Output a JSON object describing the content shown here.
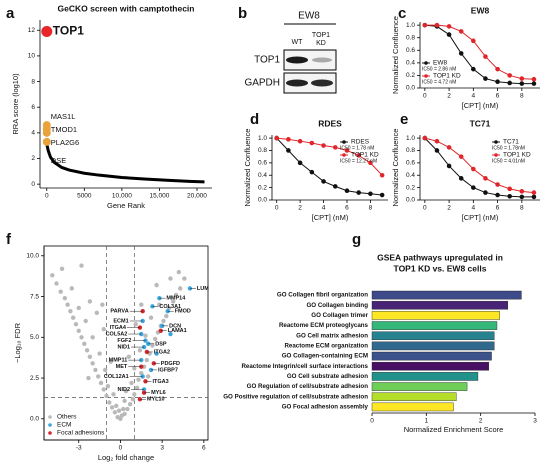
{
  "chart_data": [
    {
      "type": "scatter",
      "panel_label": "a",
      "title": "GeCKO screen with camptothecin",
      "x_label": "Gene Rank",
      "y_label": "RRA score (log10)",
      "xlim": [
        -900,
        22000
      ],
      "ylim": [
        -0.3,
        12.8
      ],
      "xticks": [
        0,
        5000,
        {
          "value": 10000,
          "label": "10,000"
        },
        {
          "value": 15000,
          "label": "15,000"
        },
        {
          "value": 20000,
          "label": "20,000"
        }
      ],
      "yticks": [
        0,
        2,
        4,
        6,
        8,
        10,
        12
      ],
      "series": [
        {
          "mode": "lines",
          "color": "#000000",
          "x": [
            0,
            50,
            200,
            500,
            1000,
            2000,
            3000,
            5000,
            7000,
            10000,
            13000,
            16000,
            19000,
            21000
          ],
          "values": [
            3.5,
            3.0,
            2.6,
            2.1,
            1.7,
            1.3,
            1.1,
            0.85,
            0.7,
            0.52,
            0.4,
            0.3,
            0.22,
            0.18
          ]
        },
        {
          "mode": "markers",
          "color": "#e8262a",
          "x": [
            1
          ],
          "values": [
            11.9
          ],
          "point_labels": [
            "TOP1"
          ]
        },
        {
          "mode": "markers",
          "color": "#e8a33a",
          "x": [
            2,
            3,
            4,
            5
          ],
          "values": [
            4.6,
            4.3,
            4.0,
            3.3
          ],
          "point_labels": [
            "MAS1L",
            "TMOD1",
            "PLA2G6",
            "DSE"
          ]
        }
      ]
    },
    {
      "type": "line",
      "panel_label": "c",
      "title": "EW8",
      "x_label": "[CPT] (nM)",
      "y_label": "Normalized Confluence",
      "xlim": [
        -0.4,
        9.5
      ],
      "ylim": [
        0,
        1.05
      ],
      "xticks": [
        0,
        2,
        4,
        6,
        8
      ],
      "yticks": [
        {
          "value": 0,
          "label": "0.0"
        },
        {
          "value": 0.2,
          "label": "0.2"
        },
        {
          "value": 0.4,
          "label": "0.4"
        },
        {
          "value": 0.6,
          "label": "0.6"
        },
        {
          "value": 0.8,
          "label": "0.8"
        },
        {
          "value": 1,
          "label": "1.0"
        }
      ],
      "legend": "lower left",
      "series": [
        {
          "mode": "lines+markers",
          "name": "EW8",
          "ic50_label": "IC50 = 2.86 nM",
          "color": "#111111",
          "x": [
            0,
            1,
            2,
            3,
            4,
            5,
            6,
            7,
            8,
            9
          ],
          "values": [
            1.0,
            0.98,
            0.85,
            0.55,
            0.3,
            0.15,
            0.1,
            0.08,
            0.07,
            0.07
          ]
        },
        {
          "mode": "lines+markers",
          "name": "TOP1 KD",
          "ic50_label": "IC50 = 4.72 nM",
          "color": "#e0262b",
          "x": [
            0,
            1,
            2,
            3,
            4,
            5,
            6,
            7,
            8,
            9
          ],
          "values": [
            1.0,
            1.0,
            0.98,
            0.9,
            0.75,
            0.5,
            0.3,
            0.2,
            0.15,
            0.14
          ]
        }
      ]
    },
    {
      "type": "line",
      "panel_label": "d",
      "title": "RDES",
      "x_label": "[CPT] (nM)",
      "y_label": "Normalized Confluence",
      "xlim": [
        -0.4,
        9.5
      ],
      "ylim": [
        0,
        1.05
      ],
      "xticks": [
        0,
        2,
        4,
        6,
        8
      ],
      "yticks": [
        {
          "value": 0,
          "label": "0.0"
        },
        {
          "value": 0.2,
          "label": "0.2"
        },
        {
          "value": 0.4,
          "label": "0.4"
        },
        {
          "value": 0.6,
          "label": "0.6"
        },
        {
          "value": 0.8,
          "label": "0.8"
        },
        {
          "value": 1,
          "label": "1.0"
        }
      ],
      "legend": "upper right",
      "series": [
        {
          "mode": "lines+markers",
          "name": "RDES",
          "ic50_label": "IC50 = 1.78 nM",
          "color": "#111111",
          "x": [
            0,
            1,
            2,
            3,
            4,
            5,
            6,
            7,
            8,
            9
          ],
          "values": [
            1.0,
            0.8,
            0.6,
            0.45,
            0.3,
            0.22,
            0.15,
            0.12,
            0.1,
            0.08
          ]
        },
        {
          "mode": "lines+markers",
          "name": "TOP1 KD",
          "ic50_label": "IC50 = 12.27 nM",
          "color": "#e0262b",
          "x": [
            0,
            1,
            2,
            3,
            4,
            5,
            6,
            7,
            8,
            9
          ],
          "values": [
            1.0,
            0.98,
            0.95,
            0.92,
            0.88,
            0.85,
            0.8,
            0.72,
            0.6,
            0.4
          ]
        }
      ]
    },
    {
      "type": "line",
      "panel_label": "e",
      "title": "TC71",
      "x_label": "[CPT] (nM)",
      "y_label": "Normalized Confluence",
      "xlim": [
        -0.4,
        9.5
      ],
      "ylim": [
        0,
        1.05
      ],
      "xticks": [
        0,
        2,
        4,
        6,
        8
      ],
      "yticks": [
        {
          "value": 0,
          "label": "0.0"
        },
        {
          "value": 0.2,
          "label": "0.2"
        },
        {
          "value": 0.4,
          "label": "0.4"
        },
        {
          "value": 0.6,
          "label": "0.6"
        },
        {
          "value": 0.8,
          "label": "0.8"
        },
        {
          "value": 1,
          "label": "1.0"
        }
      ],
      "legend": "upper right",
      "series": [
        {
          "mode": "lines+markers",
          "name": "TC71",
          "ic50_label": "IC50 = 1.78nM",
          "color": "#111111",
          "x": [
            0,
            1,
            2,
            3,
            4,
            5,
            6,
            7,
            8,
            9
          ],
          "values": [
            1.0,
            0.8,
            0.55,
            0.35,
            0.2,
            0.12,
            0.08,
            0.06,
            0.05,
            0.05
          ]
        },
        {
          "mode": "lines+markers",
          "name": "TOP1 KD",
          "ic50_label": "IC50 = 4.01nM",
          "color": "#e0262b",
          "x": [
            0,
            1,
            2,
            3,
            4,
            5,
            6,
            7,
            8,
            9
          ],
          "values": [
            1.0,
            0.95,
            0.85,
            0.7,
            0.5,
            0.35,
            0.25,
            0.18,
            0.14,
            0.12
          ]
        }
      ]
    },
    {
      "type": "scatter",
      "panel_label": "f",
      "x_label": "Log₂ fold change",
      "y_label": "−Log₁₀ FDR",
      "frame": true,
      "xlim": [
        -5.5,
        6.3
      ],
      "ylim": [
        -1.3,
        10.6
      ],
      "xticks": [
        -3,
        0,
        3,
        6
      ],
      "yticks": [
        {
          "value": 0,
          "label": "0.0"
        },
        2.5,
        {
          "value": 5,
          "label": "5.0"
        },
        7.5,
        {
          "value": 10,
          "label": "10.0"
        }
      ],
      "vlines": [
        -1,
        1
      ],
      "hlines": [
        1.3
      ],
      "legend": "lower left",
      "series": [
        {
          "mode": "markers",
          "name": "Others",
          "color": "#b9b9b9",
          "x": [
            -0.2,
            0.1,
            0.3,
            -0.4,
            0.5,
            -0.6,
            0.7,
            -0.8,
            0.9,
            -1.0,
            1.0,
            -1.2,
            1.2,
            -1.4,
            1.3,
            -1.6,
            1.5,
            -1.8,
            1.7,
            -2.0,
            1.9,
            -2.2,
            2.1,
            -2.4,
            2.3,
            -2.6,
            2.5,
            -2.8,
            2.7,
            -3.0,
            2.9,
            -3.2,
            3.1,
            -3.4,
            3.3,
            -3.6,
            3.5,
            -3.8,
            3.8,
            -4.0,
            4.0,
            -4.3,
            4.3,
            -4.6,
            4.6,
            -4.9,
            -0.9,
            0.8,
            -1.1,
            1.0,
            -1.5,
            1.4,
            -2.0,
            1.8,
            -0.5,
            0.4,
            -2.5,
            2.2,
            -3.0,
            2.8,
            -1.2,
            1.1,
            -0.3,
            0.2,
            -1.7,
            1.5,
            -2.2,
            2.6,
            -3.5,
            3.6,
            -0.7,
            0.6,
            -1.3,
            -4.2,
            4.2,
            -2.8,
            0.0,
            -0.1,
            0.3,
            -2.3,
            2.0
          ],
          "values": [
            0.1,
            0.2,
            0.3,
            0.4,
            0.6,
            0.7,
            0.9,
            1.0,
            1.2,
            1.4,
            1.5,
            1.8,
            1.9,
            2.2,
            2.4,
            2.6,
            2.8,
            3.0,
            3.2,
            3.4,
            3.6,
            3.8,
            4.0,
            4.2,
            4.5,
            4.6,
            4.9,
            5.0,
            5.3,
            5.4,
            5.7,
            5.8,
            6.0,
            6.2,
            6.3,
            6.6,
            6.8,
            7.0,
            7.2,
            7.4,
            7.6,
            7.8,
            8.0,
            8.3,
            8.6,
            8.8,
            2.0,
            2.2,
            3.0,
            3.1,
            4.0,
            4.2,
            5.0,
            5.1,
            1.5,
            1.7,
            6.0,
            6.2,
            6.8,
            7.0,
            5.5,
            5.8,
            0.8,
            0.6,
            6.5,
            7.0,
            7.2,
            8.2,
            8.0,
            8.6,
            3.5,
            3.8,
            7.0,
            9.2,
            9.0,
            9.4,
            0.0,
            0.5,
            1.1,
            2.5,
            2.6
          ]
        },
        {
          "mode": "markers",
          "name": "ECM",
          "color": "#3aa6dd",
          "x": [
            5.0,
            2.8,
            2.3,
            3.4,
            3.0,
            1.6,
            1.5,
            1.8,
            1.7,
            1.5,
            1.6,
            1.7,
            2.2,
            2.0,
            3.6,
            2.6
          ],
          "values": [
            8.0,
            7.4,
            6.9,
            6.6,
            5.7,
            6.0,
            5.2,
            4.8,
            4.4,
            3.6,
            2.6,
            1.8,
            3.0,
            4.6,
            5.2,
            4.0
          ],
          "point_labels": [
            "LUM",
            "MMP14",
            "COL3A1",
            "FMOD",
            "DCN",
            "ECM1",
            "COL5A2",
            "FGF2",
            "NID1",
            "MMP11",
            "COL12A1",
            "NID2",
            "IGFBP7",
            "DSP",
            null,
            null
          ]
        },
        {
          "mode": "markers",
          "name": "Focal adhesions",
          "color": "#d7262b",
          "x": [
            1.6,
            1.4,
            2.9,
            1.9,
            1.5,
            2.4,
            1.8,
            1.7,
            1.4
          ],
          "values": [
            6.6,
            5.6,
            5.4,
            4.1,
            3.2,
            3.4,
            2.3,
            1.6,
            1.2
          ],
          "point_labels": [
            "PARVA",
            "ITGA4",
            "LAMA1",
            "ITGA2",
            "MET",
            "PDGFD",
            "ITGA3",
            "MYL6",
            "MYL10"
          ]
        }
      ]
    },
    {
      "type": "barh",
      "panel_label": "g",
      "title": [
        "GSEA pathways upregulated in",
        "TOP1 KD vs. EW8 cells"
      ],
      "x_label": "Normalized Enrichment Score",
      "xlim": [
        0,
        3
      ],
      "xticks": [
        0,
        1,
        2,
        3
      ],
      "categories": [
        "GO Collagen fibril organization",
        "GO Collagen binding",
        "GO Collagen trimer",
        "Reactome ECM proteoglycans",
        "GO Cell matrix adhesion",
        "Reactome ECM organization",
        "GO Collagen-containing ECM",
        "Reactome Integrin/cell surface interactions",
        "GO Cell substrate adhesion",
        "GO Regulation of cell/substrate adhesion",
        "GO Positive regulation of cell/substrate adhesion",
        "GO Focal adhesion assembly"
      ],
      "values": [
        2.75,
        2.5,
        2.35,
        2.3,
        2.25,
        2.25,
        2.2,
        2.15,
        1.95,
        1.75,
        1.55,
        1.5
      ],
      "colors": [
        "#3e4a89",
        "#482475",
        "#fde725",
        "#35b779",
        "#26828e",
        "#31688e",
        "#3b528b",
        "#471063",
        "#21918c",
        "#6ece58",
        "#b5de2b",
        "#fde725"
      ]
    }
  ],
  "blot": {
    "panel_label": "b",
    "cell_line": "EW8",
    "lanes": [
      "WT",
      "TOP1",
      "KD"
    ],
    "proteins": [
      "TOP1",
      "GAPDH"
    ]
  }
}
